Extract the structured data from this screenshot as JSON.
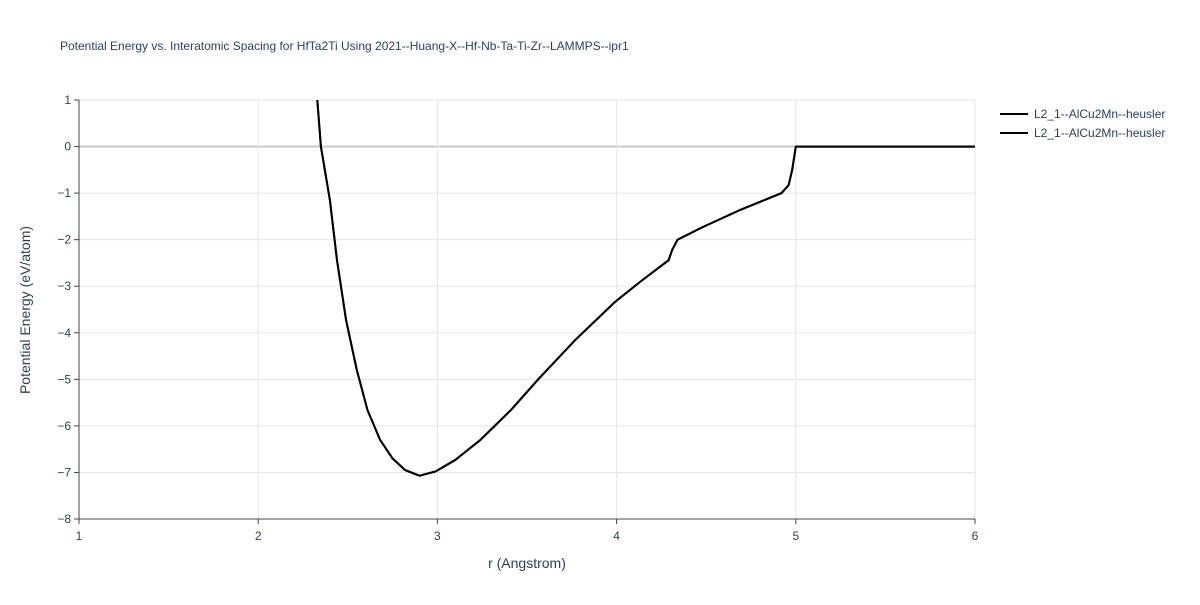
{
  "chart_data": {
    "type": "line",
    "title": "Potential Energy vs. Interatomic Spacing for HfTa2Ti Using 2021--Huang-X--Hf-Nb-Ta-Ti-Zr--LAMMPS--ipr1",
    "x_label": "r (Angstrom)",
    "y_label": "Potential Energy (eV/atom)",
    "xlim": [
      1,
      6
    ],
    "ylim": [
      -8,
      1
    ],
    "xticks": [
      1,
      2,
      3,
      4,
      5,
      6
    ],
    "yticks": [
      {
        "value": 1,
        "label": "1"
      },
      {
        "value": 0,
        "label": "0"
      },
      {
        "value": -1,
        "label": "−1"
      },
      {
        "value": -2,
        "label": "−2"
      },
      {
        "value": -3,
        "label": "−3"
      },
      {
        "value": -4,
        "label": "−4"
      },
      {
        "value": -5,
        "label": "−5"
      },
      {
        "value": -6,
        "label": "−6"
      },
      {
        "value": -7,
        "label": "−7"
      },
      {
        "value": -8,
        "label": "−8"
      }
    ],
    "grid": true,
    "x": [
      2.33,
      2.35,
      2.4,
      2.44,
      2.49,
      2.55,
      2.61,
      2.68,
      2.75,
      2.82,
      2.9,
      2.99,
      3.1,
      3.24,
      3.41,
      3.57,
      3.77,
      3.99,
      4.13,
      4.29,
      4.31,
      4.34,
      4.47,
      4.69,
      4.92,
      4.96,
      4.98,
      5.0,
      6.0
    ],
    "series": [
      {
        "name": "L2_1--AlCu2Mn--heusler",
        "color": "#000000",
        "values": [
          1,
          0,
          -1.15,
          -2.44,
          -3.72,
          -4.8,
          -5.66,
          -6.3,
          -6.7,
          -6.95,
          -7.07,
          -6.98,
          -6.73,
          -6.3,
          -5.66,
          -4.97,
          -4.15,
          -3.34,
          -2.91,
          -2.44,
          -2.22,
          -2.0,
          -1.75,
          -1.36,
          -1.0,
          -0.83,
          -0.5,
          0,
          0
        ]
      },
      {
        "name": "L2_1--AlCu2Mn--heusler",
        "color": "#000000",
        "values": [
          1,
          0,
          -1.15,
          -2.44,
          -3.72,
          -4.8,
          -5.66,
          -6.3,
          -6.7,
          -6.95,
          -7.07,
          -6.98,
          -6.73,
          -6.3,
          -5.66,
          -4.97,
          -4.15,
          -3.34,
          -2.91,
          -2.44,
          -2.22,
          -2.0,
          -1.75,
          -1.36,
          -1.0,
          -0.83,
          -0.5,
          0,
          0
        ]
      }
    ]
  }
}
